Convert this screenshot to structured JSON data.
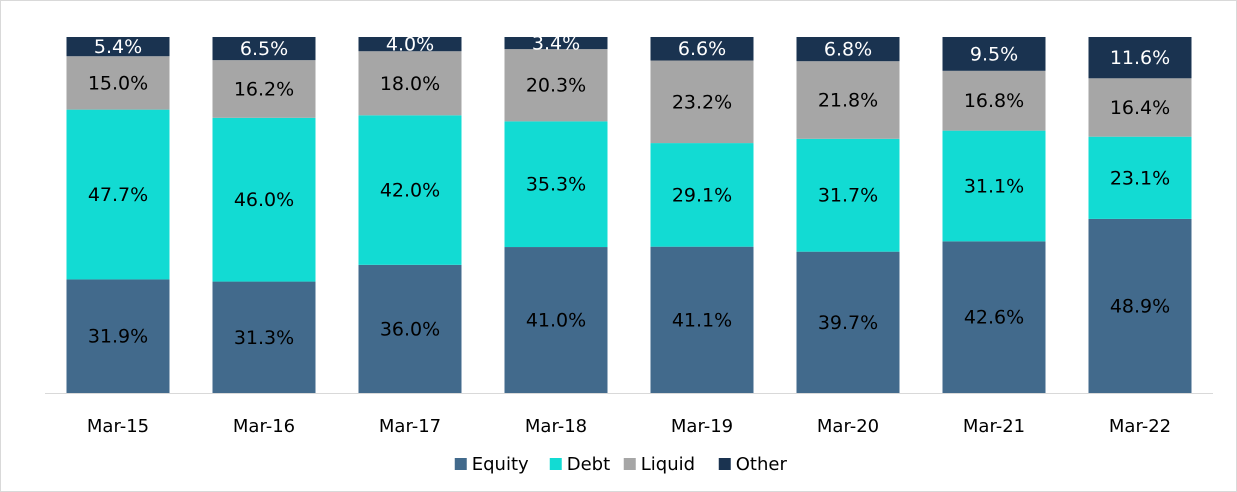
{
  "chart_data": {
    "type": "stacked_bar",
    "categories": [
      "Mar-15",
      "Mar-16",
      "Mar-17",
      "Mar-18",
      "Mar-19",
      "Mar-20",
      "Mar-21",
      "Mar-22"
    ],
    "series": [
      {
        "name": "Equity",
        "color": "#426a8c",
        "values": [
          31.9,
          31.3,
          36.0,
          41.0,
          41.1,
          39.7,
          42.6,
          48.9
        ],
        "value_labels": [
          "31.9%",
          "31.3%",
          "36.0%",
          "41.0%",
          "41.1%",
          "39.7%",
          "42.6%",
          "48.9%"
        ]
      },
      {
        "name": "Debt",
        "color": "#12dbd3",
        "values": [
          47.7,
          46.0,
          42.0,
          35.3,
          29.1,
          31.7,
          31.1,
          23.1
        ],
        "value_labels": [
          "47.7%",
          "46.0%",
          "42.0%",
          "35.3%",
          "29.1%",
          "31.7%",
          "31.1%",
          "23.1%"
        ]
      },
      {
        "name": "Liquid",
        "color": "#a6a6a6",
        "values": [
          15.0,
          16.2,
          18.0,
          20.3,
          23.2,
          21.8,
          16.8,
          16.4
        ],
        "value_labels": [
          "15.0%",
          "16.2%",
          "18.0%",
          "20.3%",
          "23.2%",
          "21.8%",
          "16.8%",
          "16.4%"
        ]
      },
      {
        "name": "Other",
        "color": "#1a3350",
        "values": [
          5.4,
          6.5,
          4.0,
          3.4,
          6.6,
          6.8,
          9.5,
          11.6
        ],
        "value_labels": [
          "5.4%",
          "6.5%",
          "4.0%",
          "3.4%",
          "6.6%",
          "6.8%",
          "9.5%",
          "11.6%"
        ]
      }
    ],
    "legend": "bottom"
  }
}
